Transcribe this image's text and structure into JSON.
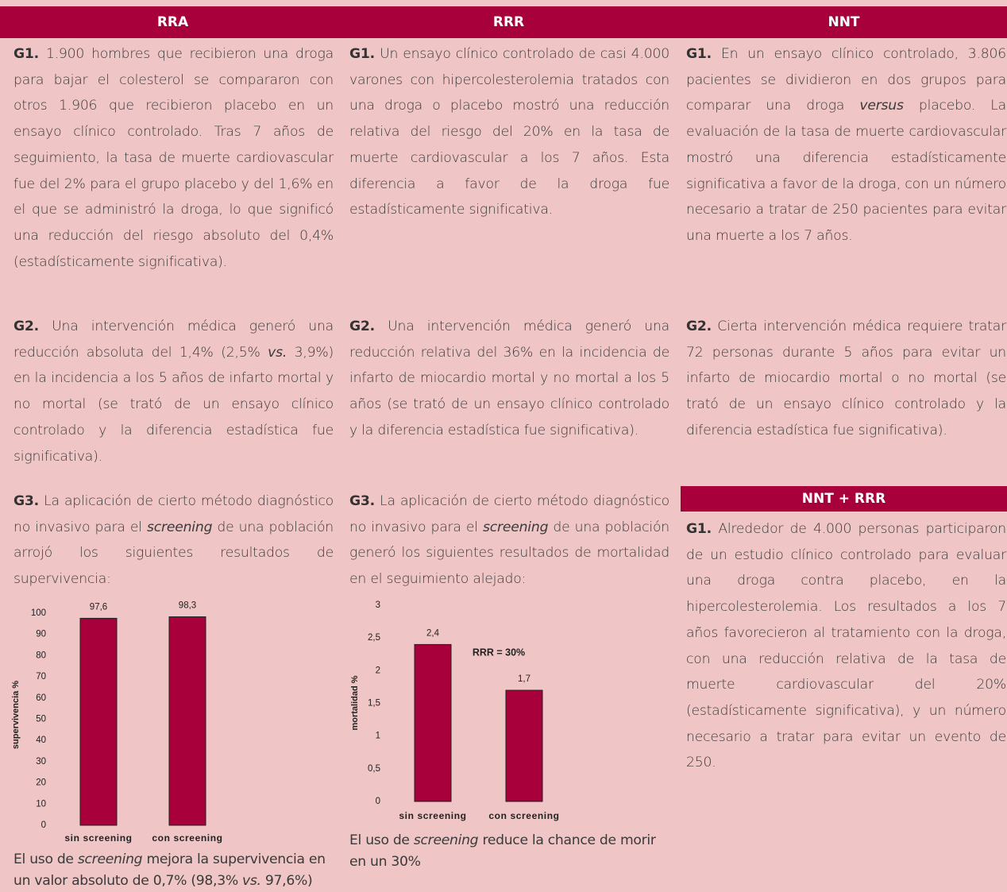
{
  "columns": [
    {
      "header": "RRA",
      "blocks": [
        {
          "label": "G1.",
          "text": [
            "1.900 hombres que recibieron una droga para bajar el colesterol se compararon con otros 1.906 que recibieron placebo en un ensayo clínico controlado. Tras 7 años de seguimiento, la tasa de muerte cardiovascular fue del 2% para el grupo placebo y del 1,6% en el que se administró la droga, lo que significó una reducción del riesgo absoluto del 0,4% (estadísticamente significativa)."
          ]
        },
        {
          "label": "G2.",
          "text": [
            "Una intervención médica generó una reducción absoluta del 1,4% (2,5% ",
            {
              "em": "vs."
            },
            " 3,9%) en la incidencia a los 5 años de infarto mortal y no mortal (se trató de un ensayo clínico controlado y la diferencia estadística fue significativa)."
          ]
        },
        {
          "label": "G3.",
          "text": [
            "La aplicación de cierto método diagnóstico no invasivo para el ",
            {
              "em": "screening"
            },
            " de una población arrojó los siguientes resultados de supervivencia:"
          ],
          "chart": {
            "type": "bar",
            "ylabel": "supervivencia %",
            "categories": [
              "sin screening",
              "con screening"
            ],
            "values": [
              97.6,
              98.3
            ],
            "value_labels": [
              "97,6",
              "98,3"
            ],
            "color": "#a8003a",
            "ylim": [
              0,
              100
            ],
            "yticks": [
              0,
              10,
              20,
              30,
              40,
              50,
              60,
              70,
              80,
              90,
              100
            ]
          },
          "caption": [
            "El uso de ",
            {
              "em": "screening"
            },
            " mejora la supervivencia en un valor absoluto de 0,7% (98,3% ",
            {
              "em": "vs."
            },
            " 97,6%)"
          ]
        }
      ]
    },
    {
      "header": "RRR",
      "blocks": [
        {
          "label": "G1.",
          "text": [
            "Un ensayo clínico controlado de casi 4.000 varones con hipercolesterolemia tratados con una droga o placebo mostró una reducción relativa del riesgo del 20% en la tasa de muerte cardiovascular a los 7 años. Esta diferencia a favor de la droga fue estadísticamente significativa."
          ]
        },
        {
          "label": "G2.",
          "text": [
            "Una intervención médica generó una reducción relativa del 36% en la incidencia de infarto de miocardio mortal y no mortal a los 5 años (se trató de un ensayo clínico controlado y la diferencia estadística fue significativa)."
          ]
        },
        {
          "label": "G3.",
          "text": [
            "La aplicación de cierto método diagnóstico no invasivo para el ",
            {
              "em": "screening"
            },
            " de una población generó los siguientes resultados de mortalidad en el seguimiento alejado:"
          ],
          "chart": {
            "type": "bar",
            "ylabel": "mortalidad %",
            "annotation": "RRR = 30%",
            "categories": [
              "sin screening",
              "con screening"
            ],
            "values": [
              2.4,
              1.7
            ],
            "value_labels": [
              "2,4",
              "1,7"
            ],
            "color": "#a8003a",
            "ylim": [
              0,
              3
            ],
            "yticks": [
              0,
              {
                "value": 0.5,
                "label": "0,5"
              },
              1,
              {
                "value": 1.5,
                "label": "1,5"
              },
              2,
              {
                "value": 2.5,
                "label": "2,5"
              },
              3
            ]
          },
          "caption": [
            "El uso de ",
            {
              "em": "screening"
            },
            " reduce la chance de morir en un 30%"
          ]
        }
      ]
    },
    {
      "header": "NNT",
      "blocks": [
        {
          "label": "G1.",
          "text": [
            "En un ensayo clínico controlado, 3.806 pacientes se dividieron en dos grupos para comparar una droga ",
            {
              "em": "versus"
            },
            " placebo. La evaluación de la tasa de muerte cardiovascular mostró una diferencia estadísticamente significativa a favor de la droga, con un número necesario a tratar de 250 pacientes para evitar una muerte a los 7 años."
          ]
        },
        {
          "label": "G2.",
          "text": [
            "Cierta intervención médica requiere tratar 72 personas durante 5 años para evitar un infarto de miocardio mortal o no mortal (se trató de un ensayo clínico controlado y la diferencia estadística fue significativa)."
          ]
        },
        {
          "header": "NNT + RRR",
          "label": "G1.",
          "text": [
            "Alrededor de 4.000 personas participaron de un estudio clínico controlado para evaluar una droga contra placebo, en la hipercolesterolemia. Los resultados a los 7 años favorecieron al tratamiento con la droga, con una reducción relativa de la tasa de muerte cardiovascular del 20% (estadísticamente significativa), y un número necesario a tratar para evitar un evento de 250."
          ]
        }
      ]
    }
  ]
}
